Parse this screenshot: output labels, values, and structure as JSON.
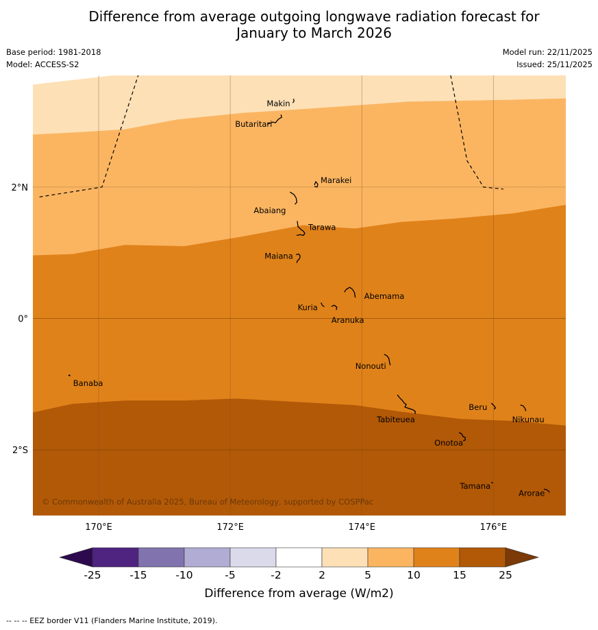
{
  "title": {
    "line1": "Difference from average outgoing longwave radiation forecast for",
    "line2": "January to March 2026"
  },
  "meta": {
    "base_period": "Base period: 1981-2018",
    "model": "Model: ACCESS-S2",
    "model_run": "Model run: 22/11/2025",
    "issued": "Issued: 25/11/2025"
  },
  "map": {
    "lon_range": [
      169,
      177.1
    ],
    "lat_range": [
      -3.0,
      3.7
    ],
    "x_ticks": [
      {
        "lon": 170,
        "label": "170°E"
      },
      {
        "lon": 172,
        "label": "172°E"
      },
      {
        "lon": 174,
        "label": "174°E"
      },
      {
        "lon": 176,
        "label": "176°E"
      }
    ],
    "y_ticks": [
      {
        "lat": 2,
        "label": "2°N"
      },
      {
        "lat": 0,
        "label": "0°"
      },
      {
        "lat": -2,
        "label": "2°S"
      }
    ],
    "islands": [
      {
        "name": "Makin",
        "lon": 172.95,
        "lat": 3.28
      },
      {
        "name": "Butaritari",
        "lon": 172.75,
        "lat": 3.0
      },
      {
        "name": "Marakei",
        "lon": 173.3,
        "lat": 2.0
      },
      {
        "name": "Abaiang",
        "lon": 172.95,
        "lat": 1.8
      },
      {
        "name": "Tarawa",
        "lon": 173.05,
        "lat": 1.4
      },
      {
        "name": "Maiana",
        "lon": 173.0,
        "lat": 0.95
      },
      {
        "name": "Abemama",
        "lon": 173.9,
        "lat": 0.38
      },
      {
        "name": "Kuria",
        "lon": 173.4,
        "lat": 0.22
      },
      {
        "name": "Aranuka",
        "lon": 173.6,
        "lat": 0.16
      },
      {
        "name": "Nonouti",
        "lon": 174.4,
        "lat": -0.65
      },
      {
        "name": "Banaba",
        "lon": 169.55,
        "lat": -0.87
      },
      {
        "name": "Tabiteuea",
        "lon": 174.8,
        "lat": -1.35
      },
      {
        "name": "Beru",
        "lon": 176.0,
        "lat": -1.33
      },
      {
        "name": "Nikunau",
        "lon": 176.45,
        "lat": -1.36
      },
      {
        "name": "Onotoa",
        "lon": 175.55,
        "lat": -1.8
      },
      {
        "name": "Tamana",
        "lon": 175.98,
        "lat": -2.5
      },
      {
        "name": "Arorae",
        "lon": 176.82,
        "lat": -2.63
      }
    ],
    "eez_left": [
      [
        169.1,
        1.85
      ],
      [
        170.05,
        2.0
      ],
      [
        170.6,
        3.7
      ]
    ],
    "eez_right": [
      [
        175.35,
        3.7
      ],
      [
        175.6,
        2.4
      ],
      [
        175.85,
        2.0
      ],
      [
        176.15,
        1.97
      ]
    ],
    "band_boundaries": [
      {
        "between": "2 to 5 | 5 to 10",
        "points": [
          [
            169,
            2.8
          ],
          [
            169.6,
            2.83
          ],
          [
            170.4,
            2.88
          ],
          [
            171.2,
            3.03
          ],
          [
            172.2,
            3.13
          ],
          [
            173.0,
            3.18
          ],
          [
            174.0,
            3.25
          ],
          [
            174.7,
            3.3
          ],
          [
            176.3,
            3.33
          ],
          [
            177.1,
            3.35
          ]
        ]
      },
      {
        "between": "5 to 10 | 10 to 15",
        "points": [
          [
            169,
            0.96
          ],
          [
            169.6,
            0.98
          ],
          [
            170.4,
            1.12
          ],
          [
            171.3,
            1.1
          ],
          [
            172.2,
            1.25
          ],
          [
            173.1,
            1.42
          ],
          [
            173.9,
            1.37
          ],
          [
            174.6,
            1.47
          ],
          [
            175.4,
            1.52
          ],
          [
            176.3,
            1.6
          ],
          [
            177.1,
            1.73
          ]
        ]
      },
      {
        "between": "10 to 15 | 15 to 25",
        "points": [
          [
            169,
            -1.43
          ],
          [
            169.6,
            -1.3
          ],
          [
            170.4,
            -1.25
          ],
          [
            171.3,
            -1.25
          ],
          [
            172.1,
            -1.22
          ],
          [
            173.0,
            -1.27
          ],
          [
            173.9,
            -1.32
          ],
          [
            174.6,
            -1.42
          ],
          [
            175.5,
            -1.53
          ],
          [
            176.3,
            -1.56
          ],
          [
            177.1,
            -1.63
          ]
        ]
      }
    ],
    "copyright": "© Commonwealth of Australia 2025, Bureau of Meteorology, supported by COSPPac"
  },
  "colorbar": {
    "label": "Difference from average (W/m2)",
    "ticks": [
      "-25",
      "-15",
      "-10",
      "-5",
      "-2",
      "2",
      "5",
      "10",
      "15",
      "25"
    ],
    "colors": [
      "#4f2380",
      "#8174ae",
      "#b1acd3",
      "#dadaeb",
      "#ffffff",
      "#fde0b6",
      "#fbb561",
      "#e0821a",
      "#b25907"
    ],
    "extend_low_color": "#2d0a4e",
    "extend_high_color": "#7b3a07"
  },
  "footnote": "--  --  -- EEZ border V11 (Flanders Marine Institute, 2019)."
}
